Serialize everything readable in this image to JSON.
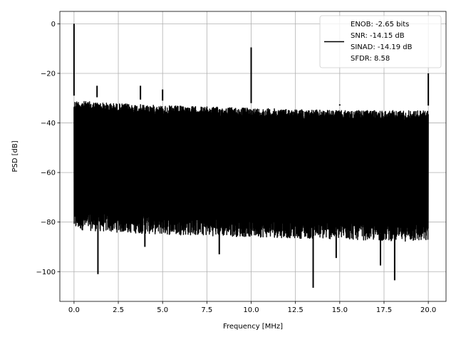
{
  "chart_data": {
    "type": "line",
    "xlabel": "Frequency [MHz]",
    "ylabel": "PSD [dB]",
    "xlim": [
      -0.8,
      21.0
    ],
    "ylim": [
      -112.0,
      5.0
    ],
    "grid": true,
    "legend_placement": "top-right",
    "xticks": [
      0,
      2.5,
      5,
      7.5,
      10,
      12.5,
      15,
      17.5,
      20
    ],
    "xtick_labels": [
      "0.0",
      "2.5",
      "5.0",
      "7.5",
      "10.0",
      "12.5",
      "15.0",
      "17.5",
      "20.0"
    ],
    "yticks": [
      0,
      -20,
      -40,
      -60,
      -80,
      -100
    ],
    "ytick_labels": [
      "0",
      "−20",
      "−40",
      "−60",
      "−80",
      "−100"
    ],
    "series": [
      {
        "name": "ENOB: -2.65 bits\nSNR: -14.15 dB\nSINAD: -14.19 dB\nSFDR: 8.58",
        "color": "#000000",
        "noise_band": {
          "x": [
            0.0,
            2.0,
            5.0,
            10.0,
            15.0,
            20.0
          ],
          "upper": [
            -31,
            -32,
            -33,
            -34,
            -35,
            -35
          ],
          "lower": [
            -80,
            -81,
            -82,
            -83,
            -84,
            -85
          ]
        },
        "peaks": [
          {
            "x": 0.0,
            "y": 0.0
          },
          {
            "x": 1.3,
            "y": -25.0
          },
          {
            "x": 3.75,
            "y": -25.0
          },
          {
            "x": 5.0,
            "y": -26.5
          },
          {
            "x": 10.0,
            "y": -9.5
          },
          {
            "x": 15.0,
            "y": -32.5
          },
          {
            "x": 20.0,
            "y": -20.0
          }
        ],
        "dips": [
          {
            "x": 1.35,
            "y": -101.0
          },
          {
            "x": 4.0,
            "y": -90.0
          },
          {
            "x": 8.2,
            "y": -93.0
          },
          {
            "x": 13.5,
            "y": -106.5
          },
          {
            "x": 14.8,
            "y": -94.5
          },
          {
            "x": 17.3,
            "y": -97.5
          },
          {
            "x": 18.1,
            "y": -103.5
          }
        ]
      }
    ]
  }
}
